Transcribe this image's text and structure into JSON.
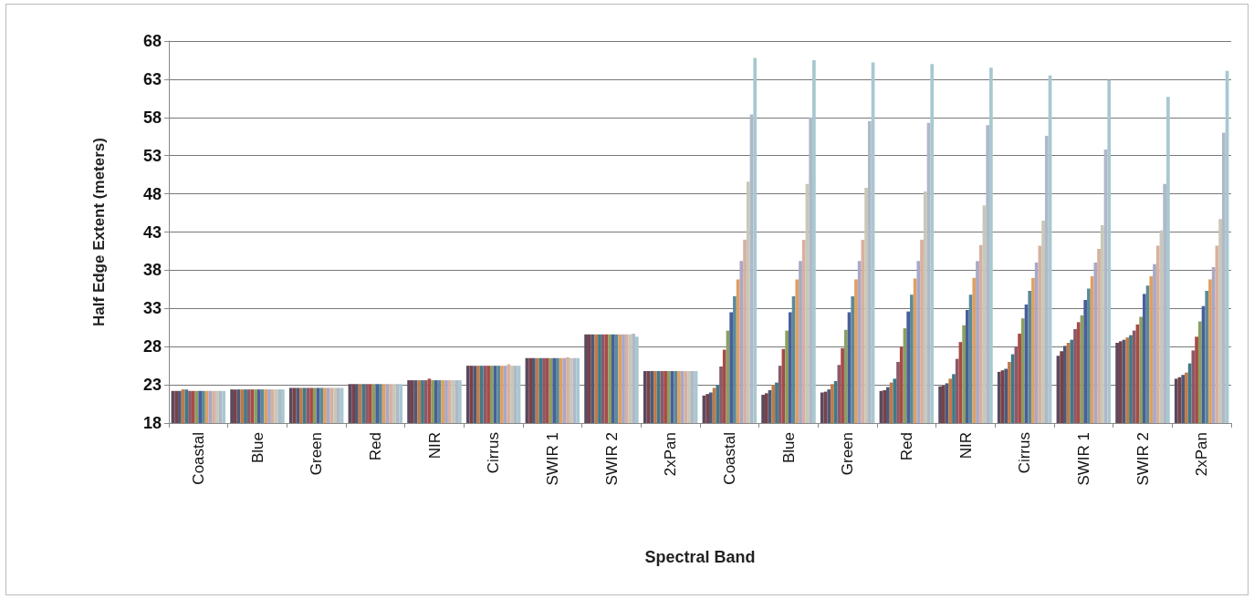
{
  "chart_data": {
    "type": "bar",
    "xlabel": "Spectral Band",
    "ylabel": "Half Edge Extent (meters)",
    "categories": [
      "Coastal",
      "Blue",
      "Green",
      "Red",
      "NIR",
      "Cirrus",
      "SWIR 1",
      "SWIR 2",
      "2xPan",
      "Coastal",
      "Blue",
      "Green",
      "Red",
      "NIR",
      "Cirrus",
      "SWIR 1",
      "SWIR 2",
      "2xPan"
    ],
    "ylim": [
      18,
      68
    ],
    "yticks": [
      18,
      23,
      28,
      33,
      38,
      43,
      48,
      53,
      58,
      63,
      68
    ],
    "grid": "y",
    "series": [
      {
        "color": "#5a4a5e",
        "values": [
          22.2,
          22.4,
          22.6,
          23.1,
          23.6,
          25.5,
          26.5,
          29.6,
          24.8,
          21.6,
          21.7,
          22.0,
          22.2,
          22.8,
          24.7,
          26.8,
          28.5,
          23.8
        ]
      },
      {
        "color": "#7a4048",
        "values": [
          22.2,
          22.4,
          22.6,
          23.1,
          23.6,
          25.5,
          26.5,
          29.6,
          24.8,
          21.8,
          21.9,
          22.1,
          22.3,
          22.9,
          24.9,
          27.4,
          28.7,
          24.0
        ]
      },
      {
        "color": "#4c5a78",
        "values": [
          22.2,
          22.4,
          22.6,
          23.1,
          23.6,
          25.5,
          26.5,
          29.6,
          24.8,
          22.0,
          22.3,
          22.4,
          22.7,
          23.2,
          25.1,
          28.1,
          28.9,
          24.3
        ]
      },
      {
        "color": "#c07a48",
        "values": [
          22.4,
          22.4,
          22.6,
          23.1,
          23.6,
          25.5,
          26.5,
          29.6,
          24.8,
          22.6,
          23.0,
          23.1,
          23.3,
          23.8,
          26.0,
          28.5,
          29.2,
          24.6
        ]
      },
      {
        "color": "#3e7a88",
        "values": [
          22.4,
          22.4,
          22.6,
          23.1,
          23.6,
          25.5,
          26.5,
          29.6,
          24.8,
          23.0,
          23.3,
          23.5,
          23.8,
          24.4,
          27.0,
          28.9,
          29.5,
          25.8
        ]
      },
      {
        "color": "#8a5a6a",
        "values": [
          22.2,
          22.4,
          22.6,
          23.1,
          23.6,
          25.5,
          26.5,
          29.6,
          24.8,
          25.4,
          25.5,
          25.6,
          26.0,
          26.4,
          28.0,
          30.3,
          30.1,
          27.5
        ]
      },
      {
        "color": "#a84a48",
        "values": [
          22.2,
          22.4,
          22.6,
          23.1,
          23.8,
          25.5,
          26.5,
          29.6,
          24.8,
          27.6,
          27.7,
          27.8,
          28.0,
          28.6,
          29.7,
          31.2,
          30.9,
          29.3
        ]
      },
      {
        "color": "#8aa060",
        "values": [
          22.2,
          22.4,
          22.6,
          23.1,
          23.6,
          25.5,
          26.5,
          29.6,
          24.8,
          30.1,
          30.1,
          30.2,
          30.4,
          30.8,
          31.7,
          32.1,
          31.9,
          31.3
        ]
      },
      {
        "color": "#4a5e9a",
        "values": [
          22.2,
          22.4,
          22.6,
          23.1,
          23.6,
          25.5,
          26.5,
          29.6,
          24.8,
          32.5,
          32.5,
          32.5,
          32.6,
          32.8,
          33.5,
          34.1,
          34.9,
          33.3
        ]
      },
      {
        "color": "#5a8a9a",
        "values": [
          22.2,
          22.4,
          22.6,
          23.1,
          23.6,
          25.5,
          26.5,
          29.6,
          24.8,
          34.6,
          34.6,
          34.6,
          34.8,
          34.8,
          35.3,
          35.6,
          36.0,
          35.3
        ]
      },
      {
        "color": "#e0a060",
        "values": [
          22.2,
          22.4,
          22.6,
          23.1,
          23.6,
          25.5,
          26.5,
          29.6,
          24.8,
          36.8,
          36.8,
          36.8,
          36.9,
          37.0,
          37.0,
          37.2,
          37.2,
          36.8
        ]
      },
      {
        "color": "#a8a8c8",
        "values": [
          22.2,
          22.4,
          22.6,
          23.1,
          23.6,
          25.5,
          26.5,
          29.6,
          24.8,
          39.2,
          39.2,
          39.2,
          39.2,
          39.2,
          39.0,
          39.0,
          38.8,
          38.4
        ]
      },
      {
        "color": "#d8b0a0",
        "values": [
          22.2,
          22.4,
          22.6,
          23.1,
          23.6,
          25.7,
          26.6,
          29.6,
          24.8,
          42.0,
          42.0,
          42.0,
          42.0,
          41.3,
          41.2,
          40.8,
          41.2,
          41.2
        ]
      },
      {
        "color": "#c8c8b8",
        "values": [
          22.2,
          22.4,
          22.6,
          23.1,
          23.6,
          25.5,
          26.5,
          29.6,
          24.8,
          49.6,
          49.3,
          48.8,
          48.3,
          46.5,
          44.5,
          43.9,
          43.2,
          44.7
        ]
      },
      {
        "color": "#b0b8c8",
        "values": [
          22.2,
          22.4,
          22.6,
          23.1,
          23.6,
          25.5,
          26.5,
          29.7,
          24.8,
          58.4,
          58.0,
          57.5,
          57.3,
          57.0,
          55.6,
          53.8,
          49.3,
          56.0
        ]
      },
      {
        "color": "#a8c8d0",
        "values": [
          22.2,
          22.4,
          22.6,
          23.1,
          23.6,
          25.5,
          26.5,
          29.3,
          24.8,
          65.8,
          65.5,
          65.2,
          65.0,
          64.5,
          63.5,
          62.9,
          60.7,
          64.1
        ]
      }
    ]
  }
}
